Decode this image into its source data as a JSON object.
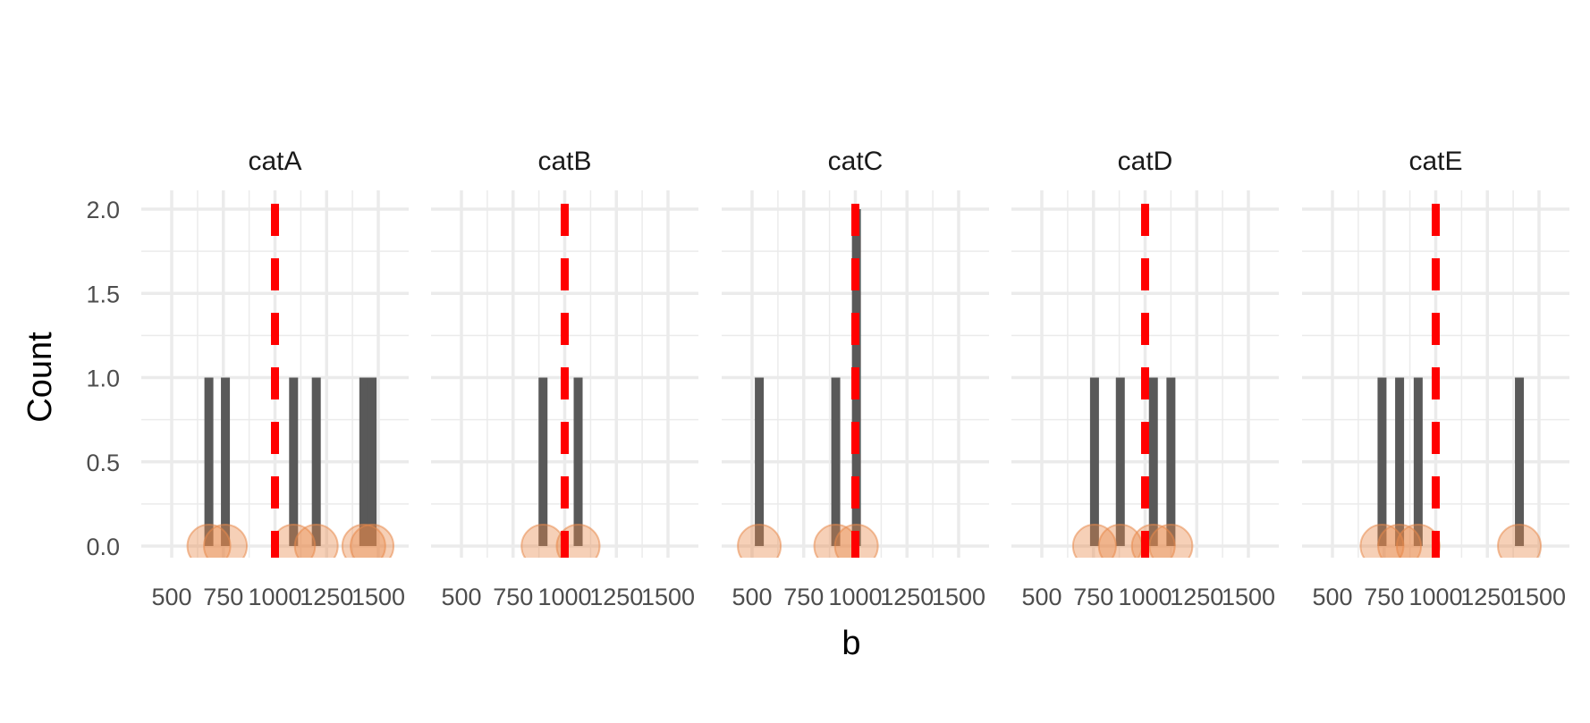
{
  "chart_data": {
    "type": "bar",
    "xlabel": "b",
    "ylabel": "Count",
    "xlim": [
      500,
      1500
    ],
    "ylim": [
      0,
      2
    ],
    "x_ticks": [
      500,
      750,
      1000,
      1250,
      1500
    ],
    "x_tick_labels": [
      "500",
      "750",
      "1000",
      "1250",
      "1500"
    ],
    "y_ticks": [
      0,
      0.5,
      1,
      1.5,
      2
    ],
    "y_tick_labels": [
      "0.0",
      "0.5",
      "1.0",
      "1.5",
      "2.0"
    ],
    "grid": true,
    "reference_line": {
      "x": 1000,
      "color": "#ff0000",
      "style": "dashed"
    },
    "bar_color": "#595959",
    "point_color": "#e8894a",
    "panels": [
      {
        "name": "catA",
        "x": [
          680,
          760,
          1090,
          1200,
          1430,
          1470
        ],
        "counts": [
          1,
          1,
          1,
          1,
          1,
          1
        ]
      },
      {
        "name": "catB",
        "x": [
          895,
          1065
        ],
        "counts": [
          1,
          1
        ]
      },
      {
        "name": "catC",
        "x": [
          535,
          905,
          1005
        ],
        "counts": [
          1,
          1,
          2
        ]
      },
      {
        "name": "catD",
        "x": [
          755,
          880,
          1040,
          1125
        ],
        "counts": [
          1,
          1,
          1,
          1
        ]
      },
      {
        "name": "catE",
        "x": [
          740,
          825,
          915,
          1405
        ],
        "counts": [
          1,
          1,
          1,
          1
        ]
      }
    ]
  }
}
